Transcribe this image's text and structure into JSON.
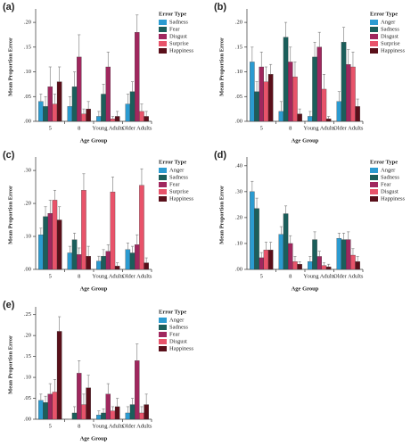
{
  "chart_data": [
    {
      "type": "bar",
      "title": "(a)",
      "ylabel": "Mean Proportion Error",
      "xlabel": "Age Group",
      "legend_title": "Error Type",
      "categories": [
        "5",
        "8",
        "Young Adults",
        "Older Adults"
      ],
      "ylim": [
        0,
        0.22
      ],
      "yticks": [
        {
          "value": 0,
          "label": ".00"
        },
        {
          "value": 0.05,
          "label": ".05"
        },
        {
          "value": 0.1,
          "label": ".10"
        },
        {
          "value": 0.15,
          "label": ".15"
        },
        {
          "value": 0.2,
          "label": ".20"
        }
      ],
      "series": [
        {
          "name": "Sadness",
          "color": "#2b9bd1",
          "values": [
            0.04,
            0.03,
            0.01,
            0.035
          ],
          "errors": [
            0.015,
            0.02,
            0.01,
            0.02
          ]
        },
        {
          "name": "Fear",
          "color": "#1b5e5b",
          "values": [
            0.03,
            0.07,
            0.055,
            0.06
          ],
          "errors": [
            0.02,
            0.03,
            0.02,
            0.02
          ]
        },
        {
          "name": "Disgust",
          "color": "#a0275e",
          "values": [
            0.07,
            0.13,
            0.11,
            0.18
          ],
          "errors": [
            0.04,
            0.045,
            0.03,
            0.035
          ]
        },
        {
          "name": "Surprise",
          "color": "#e8536a",
          "values": [
            0.035,
            0.015,
            0.005,
            0.02
          ],
          "errors": [
            0.02,
            0.01,
            0.005,
            0.015
          ]
        },
        {
          "name": "Happiness",
          "color": "#5a0f1a",
          "values": [
            0.08,
            0.025,
            0.01,
            0.01
          ],
          "errors": [
            0.03,
            0.015,
            0.01,
            0.01
          ]
        }
      ]
    },
    {
      "type": "bar",
      "title": "(b)",
      "ylabel": "Mean Proportion Error",
      "xlabel": "Age Group",
      "legend_title": "Error Type",
      "categories": [
        "5",
        "8",
        "Young Adults",
        "Older Adults"
      ],
      "ylim": [
        0,
        0.22
      ],
      "yticks": [
        {
          "value": 0,
          "label": ".00"
        },
        {
          "value": 0.05,
          "label": ".05"
        },
        {
          "value": 0.1,
          "label": ".10"
        },
        {
          "value": 0.15,
          "label": ".15"
        },
        {
          "value": 0.2,
          "label": ".20"
        }
      ],
      "series": [
        {
          "name": "Anger",
          "color": "#2b9bd1",
          "values": [
            0.12,
            0.02,
            0.01,
            0.04
          ],
          "errors": [
            0.03,
            0.02,
            0.01,
            0.02
          ]
        },
        {
          "name": "Sadness",
          "color": "#1b5e5b",
          "values": [
            0.06,
            0.17,
            0.13,
            0.16
          ],
          "errors": [
            0.02,
            0.03,
            0.03,
            0.03
          ]
        },
        {
          "name": "Disgust",
          "color": "#a0275e",
          "values": [
            0.11,
            0.12,
            0.15,
            0.115
          ],
          "errors": [
            0.03,
            0.03,
            0.03,
            0.03
          ]
        },
        {
          "name": "Surprise",
          "color": "#e8536a",
          "values": [
            0.08,
            0.09,
            0.065,
            0.11
          ],
          "errors": [
            0.03,
            0.03,
            0.03,
            0.03
          ]
        },
        {
          "name": "Happiness",
          "color": "#5a0f1a",
          "values": [
            0.095,
            0.015,
            0.005,
            0.03
          ],
          "errors": [
            0.02,
            0.01,
            0.005,
            0.015
          ]
        }
      ]
    },
    {
      "type": "bar",
      "title": "(c)",
      "ylabel": "Mean Proportion Error",
      "xlabel": "Age Group",
      "legend_title": "Error Type",
      "categories": [
        "5",
        "8",
        "Young Adults",
        "Older Adults"
      ],
      "ylim": [
        0,
        0.33
      ],
      "yticks": [
        {
          "value": 0,
          "label": ".00"
        },
        {
          "value": 0.1,
          "label": ".10"
        },
        {
          "value": 0.2,
          "label": ".20"
        },
        {
          "value": 0.3,
          "label": ".30"
        }
      ],
      "series": [
        {
          "name": "Anger",
          "color": "#2b9bd1",
          "values": [
            0.105,
            0.05,
            0.025,
            0.06
          ],
          "errors": [
            0.02,
            0.02,
            0.015,
            0.02
          ]
        },
        {
          "name": "Sadness",
          "color": "#1b5e5b",
          "values": [
            0.16,
            0.09,
            0.04,
            0.05
          ],
          "errors": [
            0.03,
            0.02,
            0.02,
            0.02
          ]
        },
        {
          "name": "Fear",
          "color": "#a0275e",
          "values": [
            0.17,
            0.045,
            0.055,
            0.075
          ],
          "errors": [
            0.04,
            0.02,
            0.02,
            0.03
          ]
        },
        {
          "name": "Surprise",
          "color": "#e8536a",
          "values": [
            0.21,
            0.24,
            0.235,
            0.255
          ],
          "errors": [
            0.03,
            0.05,
            0.045,
            0.05
          ]
        },
        {
          "name": "Happiness",
          "color": "#5a0f1a",
          "values": [
            0.15,
            0.04,
            0.01,
            0.02
          ],
          "errors": [
            0.04,
            0.03,
            0.01,
            0.015
          ]
        }
      ]
    },
    {
      "type": "bar",
      "title": "(d)",
      "ylabel": "Mean Proportion Error",
      "xlabel": "Age Group",
      "legend_title": "Error Type",
      "categories": [
        "5",
        "8",
        "Young Adults",
        "Older Adults"
      ],
      "ylim": [
        0,
        0.42
      ],
      "yticks": [
        {
          "value": 0,
          "label": ".00"
        },
        {
          "value": 0.1,
          "label": ".10"
        },
        {
          "value": 0.2,
          "label": ".20"
        },
        {
          "value": 0.3,
          "label": ".30"
        },
        {
          "value": 0.4,
          "label": ".40"
        }
      ],
      "series": [
        {
          "name": "Anger",
          "color": "#2b9bd1",
          "values": [
            0.3,
            0.135,
            0.03,
            0.12
          ],
          "errors": [
            0.04,
            0.03,
            0.02,
            0.02
          ]
        },
        {
          "name": "Sadness",
          "color": "#1b5e5b",
          "values": [
            0.235,
            0.215,
            0.115,
            0.115
          ],
          "errors": [
            0.04,
            0.03,
            0.03,
            0.025
          ]
        },
        {
          "name": "Fear",
          "color": "#a0275e",
          "values": [
            0.045,
            0.1,
            0.05,
            0.115
          ],
          "errors": [
            0.02,
            0.03,
            0.02,
            0.03
          ]
        },
        {
          "name": "Disgust",
          "color": "#e8536a",
          "values": [
            0.075,
            0.03,
            0.015,
            0.055
          ],
          "errors": [
            0.03,
            0.02,
            0.01,
            0.025
          ]
        },
        {
          "name": "Happiness",
          "color": "#5a0f1a",
          "values": [
            0.075,
            0.02,
            0.01,
            0.03
          ],
          "errors": [
            0.03,
            0.01,
            0.01,
            0.02
          ]
        }
      ]
    },
    {
      "type": "bar",
      "title": "(e)",
      "ylabel": "Mean Proportion Error",
      "xlabel": "Age Group",
      "legend_title": "Error Type",
      "categories": [
        "5",
        "8",
        "Young Adults",
        "Older Adults"
      ],
      "ylim": [
        0,
        0.26
      ],
      "yticks": [
        {
          "value": 0,
          "label": ".00"
        },
        {
          "value": 0.05,
          "label": ".05"
        },
        {
          "value": 0.1,
          "label": ".10"
        },
        {
          "value": 0.15,
          "label": ".15"
        },
        {
          "value": 0.2,
          "label": ".20"
        },
        {
          "value": 0.25,
          "label": ".25"
        }
      ],
      "series": [
        {
          "name": "Anger",
          "color": "#2b9bd1",
          "values": [
            0.045,
            0,
            0.01,
            0.015
          ],
          "errors": [
            0.015,
            0,
            0.01,
            0.015
          ]
        },
        {
          "name": "Sadness",
          "color": "#1b5e5b",
          "values": [
            0.04,
            0.015,
            0.015,
            0.035
          ],
          "errors": [
            0.015,
            0.015,
            0.01,
            0.015
          ]
        },
        {
          "name": "Fear",
          "color": "#a0275e",
          "values": [
            0.06,
            0.11,
            0.06,
            0.14
          ],
          "errors": [
            0.025,
            0.03,
            0.025,
            0.04
          ]
        },
        {
          "name": "Disgust",
          "color": "#e8536a",
          "values": [
            0.065,
            0.035,
            0.02,
            0.015
          ],
          "errors": [
            0.03,
            0.025,
            0.01,
            0.015
          ]
        },
        {
          "name": "Happiness",
          "color": "#5a0f1a",
          "values": [
            0.21,
            0.075,
            0.03,
            0.035
          ],
          "errors": [
            0.035,
            0.03,
            0.02,
            0.025
          ]
        }
      ]
    }
  ]
}
